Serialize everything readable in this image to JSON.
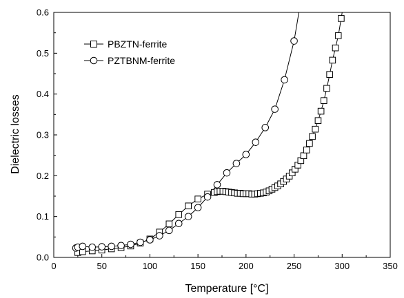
{
  "chart_data": {
    "type": "scatter",
    "xlabel": "Temperature [°C]",
    "ylabel": "Dielectric losses",
    "xlim": [
      0,
      350
    ],
    "ylim": [
      0,
      0.6
    ],
    "x_ticks": [
      0,
      50,
      100,
      150,
      200,
      250,
      300,
      350
    ],
    "y_ticks": [
      0.0,
      0.1,
      0.2,
      0.3,
      0.4,
      0.5,
      0.6
    ],
    "x_tick_labels": [
      "0",
      "50",
      "100",
      "150",
      "200",
      "250",
      "300",
      "350"
    ],
    "y_tick_labels": [
      "0.0",
      "0.1",
      "0.2",
      "0.3",
      "0.4",
      "0.5",
      "0.6"
    ],
    "legend_position": "top-left",
    "grid": false,
    "series": [
      {
        "name": "PBZTN-ferrite",
        "marker": "square",
        "points": [
          [
            25,
            0.012
          ],
          [
            30,
            0.014
          ],
          [
            40,
            0.016
          ],
          [
            50,
            0.018
          ],
          [
            60,
            0.021
          ],
          [
            70,
            0.024
          ],
          [
            80,
            0.028
          ],
          [
            90,
            0.035
          ],
          [
            100,
            0.045
          ],
          [
            110,
            0.062
          ],
          [
            120,
            0.082
          ],
          [
            130,
            0.105
          ],
          [
            140,
            0.126
          ],
          [
            150,
            0.143
          ],
          [
            160,
            0.155
          ],
          [
            167,
            0.159
          ],
          [
            170,
            0.161
          ],
          [
            173,
            0.162
          ],
          [
            176,
            0.162
          ],
          [
            179,
            0.161
          ],
          [
            182,
            0.16
          ],
          [
            185,
            0.159
          ],
          [
            188,
            0.158
          ],
          [
            191,
            0.157
          ],
          [
            194,
            0.157
          ],
          [
            197,
            0.156
          ],
          [
            200,
            0.156
          ],
          [
            203,
            0.156
          ],
          [
            206,
            0.155
          ],
          [
            209,
            0.155
          ],
          [
            212,
            0.156
          ],
          [
            215,
            0.157
          ],
          [
            218,
            0.158
          ],
          [
            221,
            0.16
          ],
          [
            224,
            0.163
          ],
          [
            227,
            0.167
          ],
          [
            230,
            0.171
          ],
          [
            233,
            0.175
          ],
          [
            236,
            0.18
          ],
          [
            239,
            0.186
          ],
          [
            242,
            0.192
          ],
          [
            245,
            0.199
          ],
          [
            248,
            0.207
          ],
          [
            251,
            0.216
          ],
          [
            254,
            0.226
          ],
          [
            257,
            0.237
          ],
          [
            260,
            0.249
          ],
          [
            263,
            0.263
          ],
          [
            266,
            0.279
          ],
          [
            269,
            0.296
          ],
          [
            272,
            0.314
          ],
          [
            275,
            0.335
          ],
          [
            278,
            0.358
          ],
          [
            281,
            0.384
          ],
          [
            284,
            0.414
          ],
          [
            287,
            0.448
          ],
          [
            290,
            0.483
          ],
          [
            293,
            0.513
          ],
          [
            296,
            0.543
          ],
          [
            299,
            0.585
          ]
        ],
        "line_extension": [
          [
            300,
            0.6
          ]
        ]
      },
      {
        "name": "PZTBNM-ferrite",
        "marker": "circle",
        "points": [
          [
            23,
            0.023
          ],
          [
            25,
            0.025
          ],
          [
            30,
            0.027
          ],
          [
            40,
            0.025
          ],
          [
            50,
            0.026
          ],
          [
            60,
            0.027
          ],
          [
            70,
            0.029
          ],
          [
            80,
            0.032
          ],
          [
            90,
            0.037
          ],
          [
            100,
            0.043
          ],
          [
            110,
            0.053
          ],
          [
            120,
            0.066
          ],
          [
            130,
            0.083
          ],
          [
            140,
            0.1
          ],
          [
            150,
            0.122
          ],
          [
            160,
            0.148
          ],
          [
            170,
            0.178
          ],
          [
            180,
            0.207
          ],
          [
            190,
            0.23
          ],
          [
            200,
            0.252
          ],
          [
            210,
            0.282
          ],
          [
            220,
            0.318
          ],
          [
            230,
            0.363
          ],
          [
            240,
            0.435
          ],
          [
            250,
            0.53
          ]
        ],
        "line_extension": [
          [
            255,
            0.6
          ]
        ]
      }
    ]
  }
}
